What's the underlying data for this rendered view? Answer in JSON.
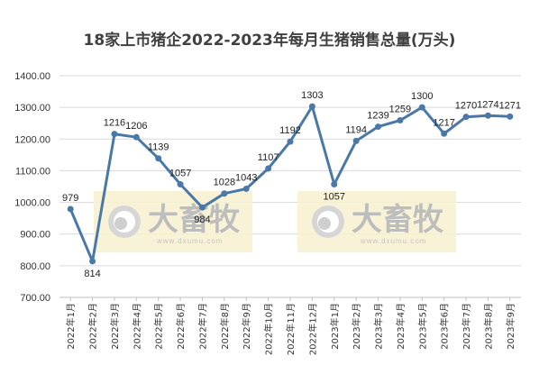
{
  "chart_data": {
    "type": "line",
    "title": "18家上市猪企2022-2023年每月生猪销售总量(万头)",
    "xlabel": "",
    "ylabel": "",
    "ylim": [
      700,
      1400
    ],
    "yticks": [
      "700.00",
      "800.00",
      "900.00",
      "1000.00",
      "1100.00",
      "1200.00",
      "1300.00",
      "1400.00"
    ],
    "grid": true,
    "legend": "none",
    "line_color": "#4a78a8",
    "categories": [
      "2022年1月",
      "2022年2月",
      "2022年3月",
      "2022年4月",
      "2022年5月",
      "2022年6月",
      "2022年7月",
      "2022年8月",
      "2022年9月",
      "2022年10月",
      "2022年11月",
      "2022年12月",
      "2023年1月",
      "2023年2月",
      "2023年3月",
      "2023年4月",
      "2023年5月",
      "2023年6月",
      "2023年7月",
      "2023年8月",
      "2023年9月"
    ],
    "series": [
      {
        "values": [
          979,
          814,
          1216,
          1206,
          1139,
          1057,
          984,
          1028,
          1043,
          1107,
          1192,
          1303,
          1057,
          1194,
          1239,
          1259,
          1300,
          1217,
          1270,
          1274,
          1271
        ]
      }
    ]
  },
  "watermark": {
    "text": "大畜牧",
    "subtext": "www.dxumu.com",
    "icon": "circle-logo-icon",
    "box_color": "#f7f1cf"
  }
}
